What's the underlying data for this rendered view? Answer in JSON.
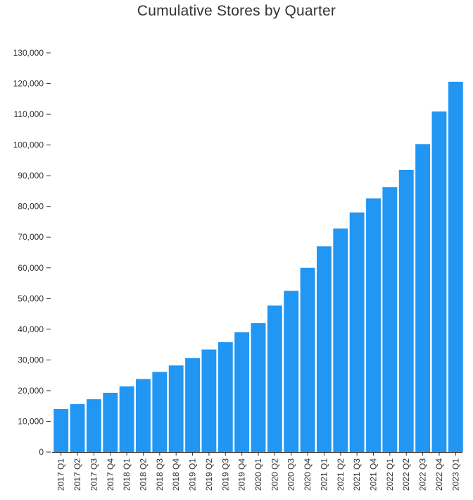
{
  "chart_data": {
    "type": "bar",
    "title": "Cumulative Stores by Quarter",
    "xlabel": "",
    "ylabel": "",
    "categories": [
      "2017 Q1",
      "2017 Q2",
      "2017 Q3",
      "2017 Q4",
      "2018 Q1",
      "2018 Q2",
      "2018 Q3",
      "2018 Q4",
      "2019 Q1",
      "2019 Q2",
      "2019 Q3",
      "2019 Q4",
      "2020 Q1",
      "2020 Q2",
      "2020 Q3",
      "2020 Q4",
      "2021 Q1",
      "2021 Q2",
      "2021 Q3",
      "2021 Q4",
      "2022 Q1",
      "2022 Q2",
      "2022 Q3",
      "2022 Q4",
      "2023 Q1"
    ],
    "values": [
      14000,
      15600,
      17200,
      19300,
      21400,
      23800,
      26100,
      28200,
      30600,
      33400,
      35800,
      39000,
      42000,
      47700,
      52500,
      60000,
      67000,
      72800,
      78000,
      82600,
      86300,
      91900,
      100300,
      110900,
      120600
    ],
    "ylim": [
      0,
      130000
    ],
    "yticks": [
      0,
      10000,
      20000,
      30000,
      40000,
      50000,
      60000,
      70000,
      80000,
      90000,
      100000,
      110000,
      120000,
      130000
    ],
    "bar_color": "#2196f3",
    "grid": false,
    "legend": "none"
  }
}
